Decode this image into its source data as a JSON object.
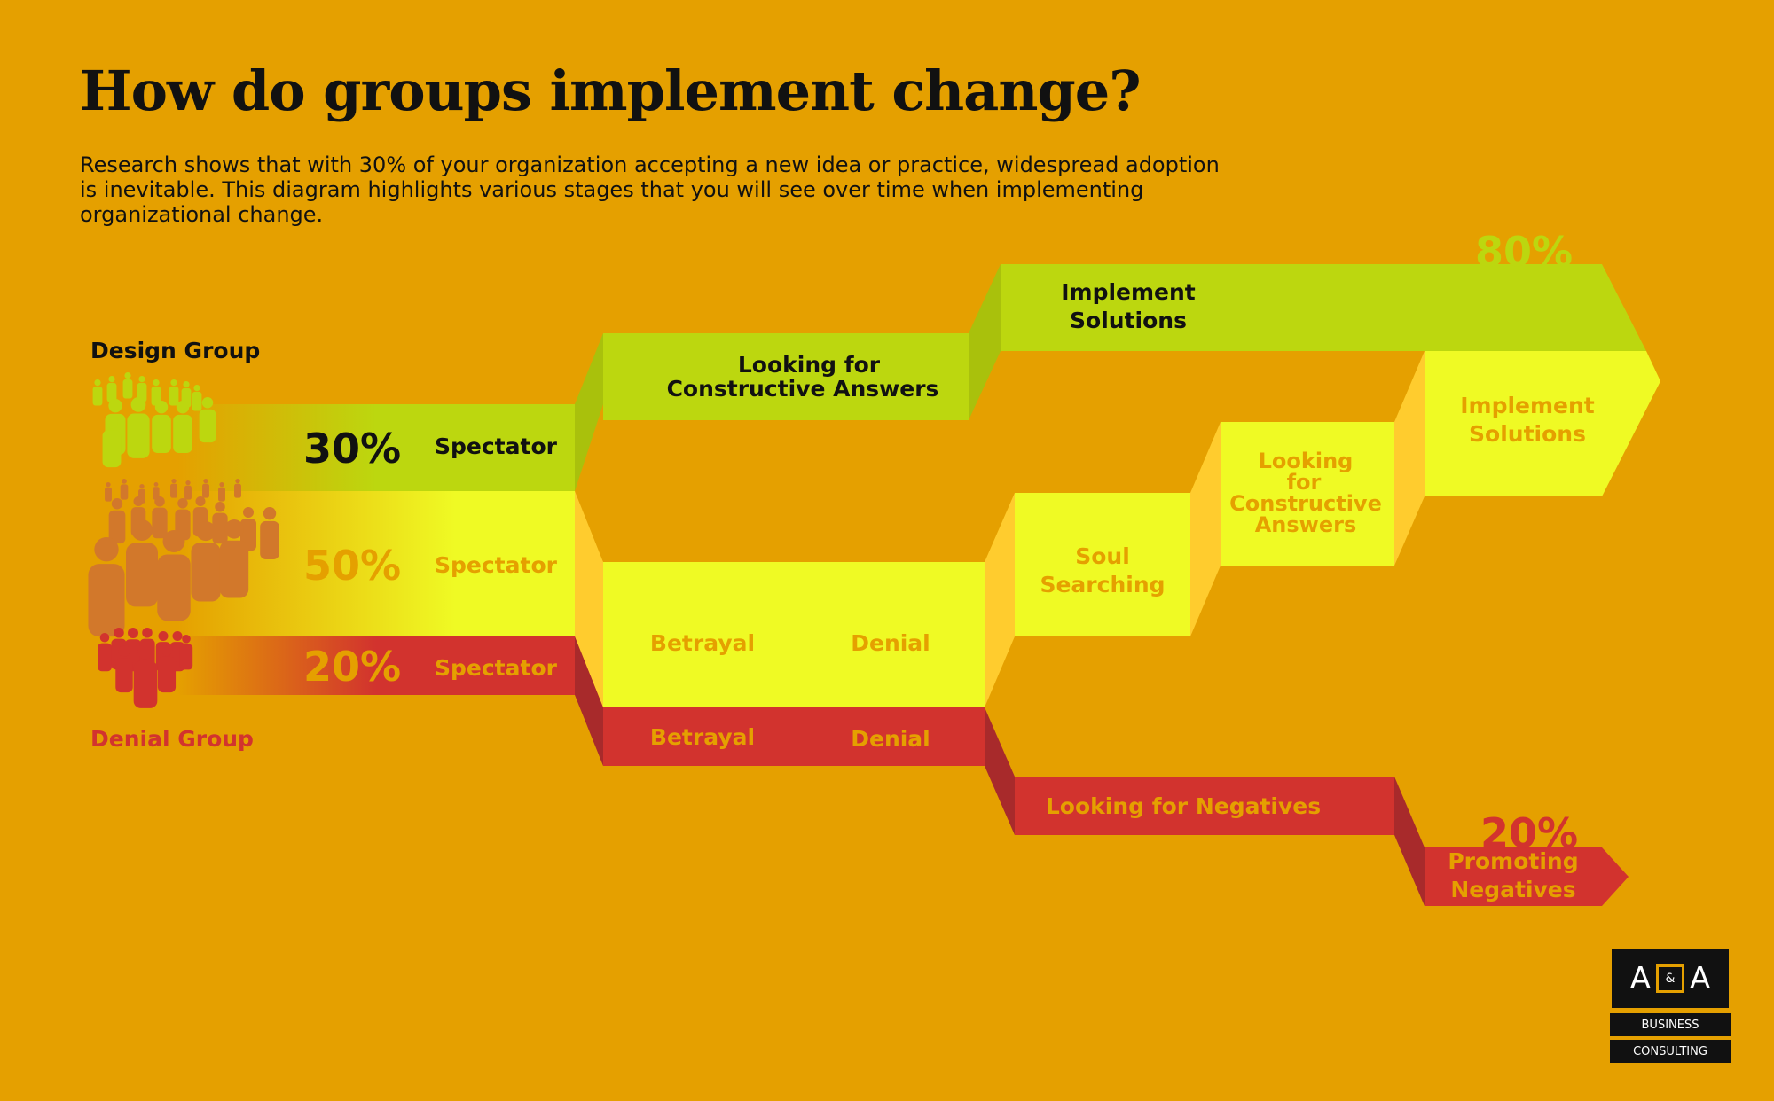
{
  "title": "How do groups implement change?",
  "subtitle": "Research shows that with 30% of your organization accepting a new idea or practice, widespread adoption is inevitable. This diagram highlights various stages that you will see over time when implementing organizational change.",
  "groups": {
    "design_label": "Design Group",
    "denial_label": "Denial Group"
  },
  "start": {
    "green_pct": "30%",
    "green_label": "Spectator",
    "yellow_pct": "50%",
    "yellow_label": "Spectator",
    "red_pct": "20%",
    "red_label": "Spectator"
  },
  "stages": {
    "green_looking_l1": "Looking for",
    "green_looking_l2": "Constructive Answers",
    "green_implement_l1": "Implement",
    "green_implement_l2": "Solutions",
    "green_end_pct": "80%",
    "yellow_betrayal": "Betrayal",
    "yellow_denial": "Denial",
    "red_betrayal": "Betrayal",
    "red_denial": "Denial",
    "soul_l1": "Soul",
    "soul_l2": "Searching",
    "looking2_l1": "Looking",
    "looking2_l2": "for",
    "looking2_l3": "Constructive",
    "looking2_l4": "Answers",
    "implement2_l1": "Implement",
    "implement2_l2": "Solutions",
    "negatives": "Looking for Negatives",
    "promoting_l1": "Promoting",
    "promoting_l2": "Negatives",
    "red_end_pct": "20%"
  },
  "logo": {
    "left": "A",
    "amp": "&",
    "right": "A",
    "line1": "BUSINESS",
    "line2": "CONSULTING"
  },
  "colors": {
    "background": "#E5A000",
    "green": "#BCD70F",
    "yellow": "#EFFA24",
    "red": "#D2332E",
    "orange_people": "#D2782B"
  }
}
